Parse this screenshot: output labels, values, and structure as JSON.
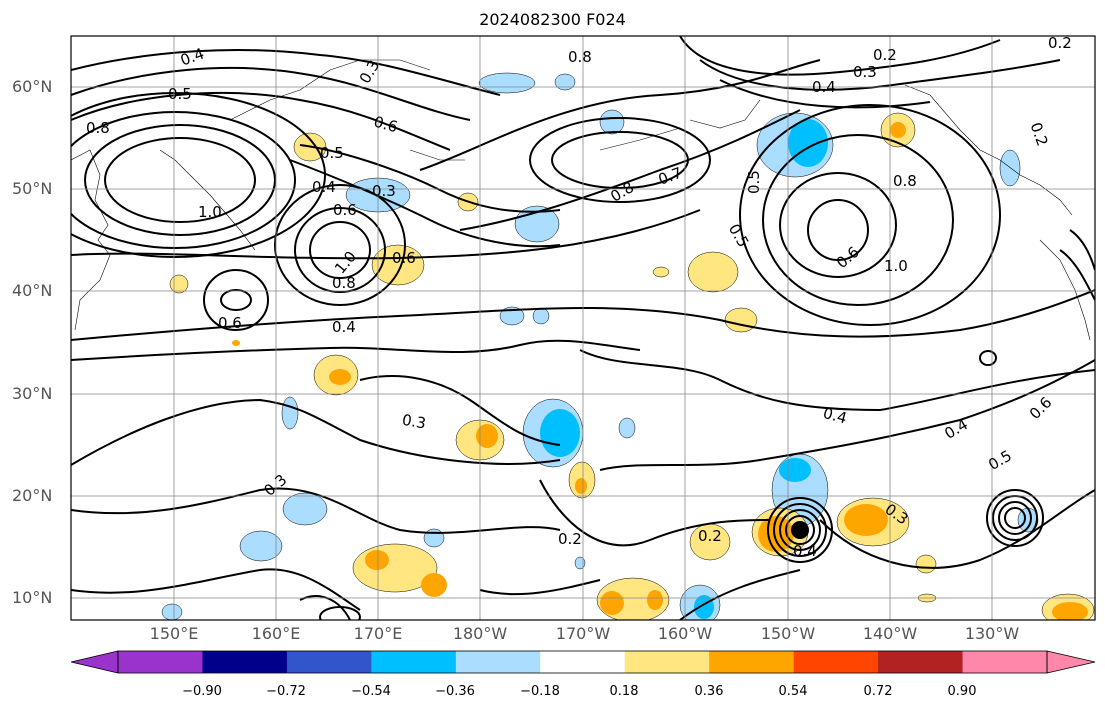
{
  "title": "2024082300 F024",
  "lat_labels": [
    "60°N",
    "50°N",
    "40°N",
    "30°N",
    "20°N",
    "10°N"
  ],
  "lon_labels": [
    "150°E",
    "160°E",
    "170°E",
    "180°W",
    "170°W",
    "160°W",
    "150°W",
    "140°W",
    "130°W"
  ],
  "contour_labels": [
    "0.4",
    "0.5",
    "0.8",
    "0.3",
    "0.6",
    "0.8",
    "0.2",
    "0.3",
    "0.4",
    "0.2",
    "0.5",
    "0.4",
    "0.3",
    "1.0",
    "0.6",
    "0.8",
    "1.0",
    "0.4",
    "0.6",
    "0.8",
    "0.7",
    "0.5",
    "0.8",
    "0.5",
    "0.6",
    "1.0",
    "0.6",
    "0.4",
    "0.3",
    "0.3",
    "0.4",
    "0.2",
    "0.2",
    "0.3",
    "0.4",
    "0.5",
    "0.6",
    "0.2"
  ],
  "colorbar": {
    "ticks": [
      "−0.90",
      "−0.72",
      "−0.54",
      "−0.36",
      "−0.18",
      "0.18",
      "0.36",
      "0.54",
      "0.72",
      "0.90"
    ],
    "colors": [
      "#9933cc",
      "#00008b",
      "#3355cc",
      "#00bfff",
      "#aaddff",
      "#ffffff",
      "#ffe680",
      "#ffa500",
      "#ff4500",
      "#b22222",
      "#ff88aa"
    ]
  },
  "shading_colors": {
    "pos_light": "#ffe680",
    "pos_mid": "#ffa500",
    "pos_strong": "#ff4500",
    "neg_light": "#aaddff",
    "neg_mid": "#00bfff"
  }
}
